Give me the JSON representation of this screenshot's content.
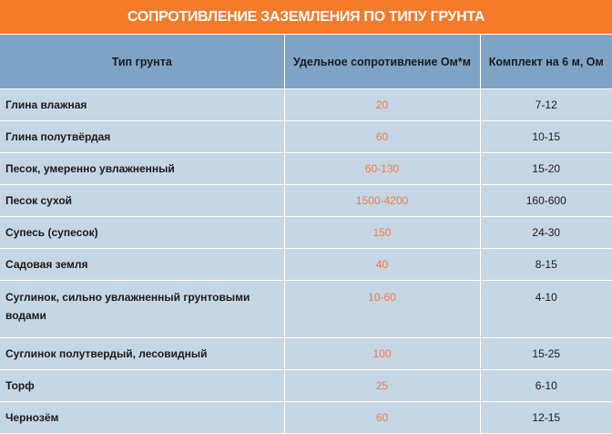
{
  "title": "СОПРОТИВЛЕНИЕ ЗАЗЕМЛЕНИЯ ПО ТИПУ ГРУНТА",
  "headers": [
    "Тип грунта",
    "Удельное сопротивление Ом*м",
    "Комплект на 6 м, Ом"
  ],
  "rows": [
    {
      "soil": "Глина влажная",
      "resistivity": "20",
      "kit": "7-12"
    },
    {
      "soil": "Глина полутвёрдая",
      "resistivity": "60",
      "kit": "10-15"
    },
    {
      "soil": "Песок, умеренно увлажненный",
      "resistivity": "60-130",
      "kit": "15-20"
    },
    {
      "soil": "Песок сухой",
      "resistivity": "1500-4200",
      "kit": "160-600"
    },
    {
      "soil": "Супесь (супесок)",
      "resistivity": "150",
      "kit": "24-30"
    },
    {
      "soil": "Садовая земля",
      "resistivity": "40",
      "kit": "8-15"
    },
    {
      "soil": "Суглинок, сильно увлажненный грунтовыми водами",
      "resistivity": "10-60",
      "kit": "4-10"
    },
    {
      "soil": "Суглинок полутвердый, лесовидный",
      "resistivity": "100",
      "kit": "15-25"
    },
    {
      "soil": "Торф",
      "resistivity": "25",
      "kit": "6-10"
    },
    {
      "soil": "Чернозём",
      "resistivity": "60",
      "kit": "12-15"
    }
  ],
  "colors": {
    "title_bg": "#f47b2a",
    "header_bg": "#7fa3c4",
    "row_bg": "#c5d6e4",
    "value_text": "#f07a4a"
  }
}
